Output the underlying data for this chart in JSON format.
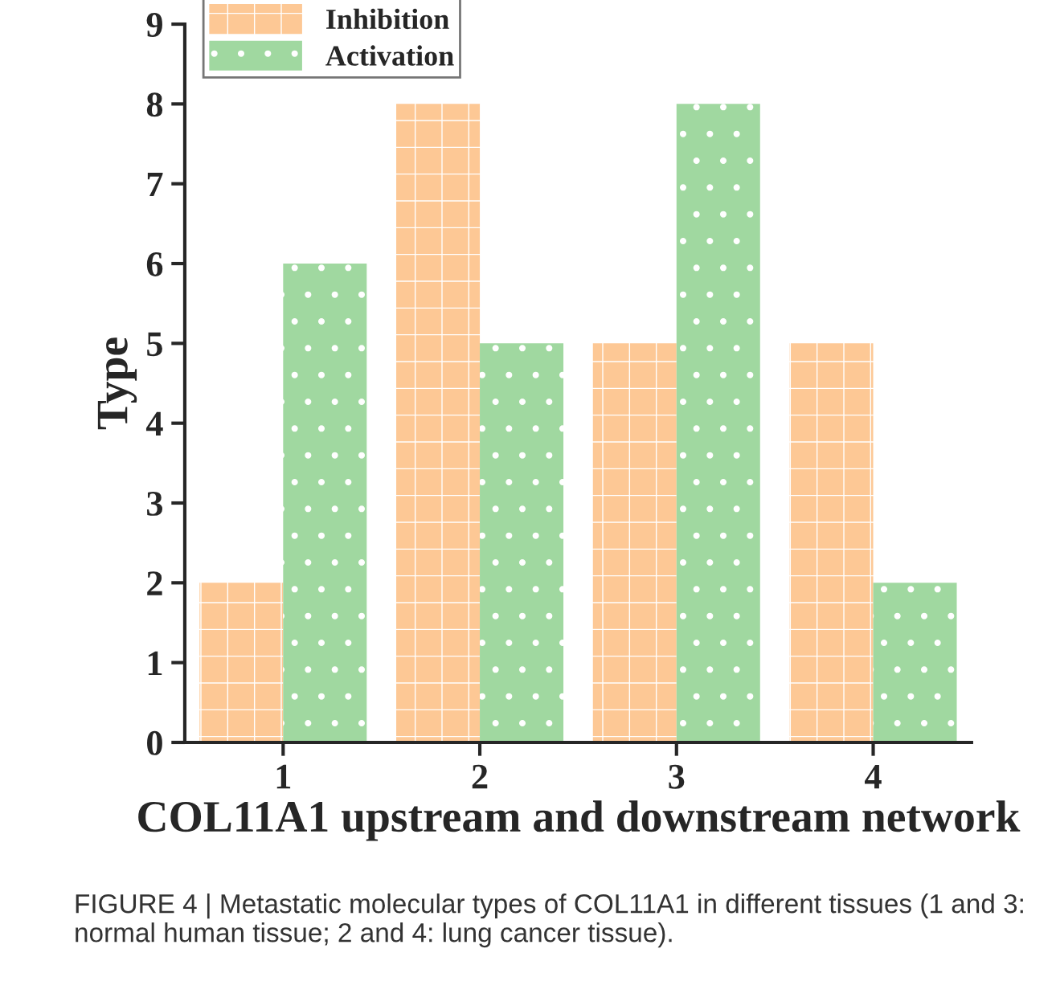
{
  "chart_data": {
    "type": "bar",
    "xlabel": "COL11A1 upstream and downstream network",
    "ylabel": "Type",
    "categories": [
      "1",
      "2",
      "3",
      "4"
    ],
    "series": [
      {
        "name": "Inhibition",
        "color": "#fdc895",
        "values": [
          2,
          8,
          5,
          5
        ]
      },
      {
        "name": "Activation",
        "color": "#a0d8a0",
        "values": [
          6,
          5,
          8,
          2
        ]
      }
    ],
    "ylim": [
      0,
      9
    ],
    "yticks": [
      0,
      1,
      2,
      3,
      4,
      5,
      6,
      7,
      8,
      9
    ],
    "grid": false,
    "legend": "top left",
    "annotations": [
      "FIGURE 4 | Metastatic molecular types of COL11A1 in different tissues (1 and 3: normal human tissue; 2 and 4: lung cancer tissue)."
    ]
  }
}
